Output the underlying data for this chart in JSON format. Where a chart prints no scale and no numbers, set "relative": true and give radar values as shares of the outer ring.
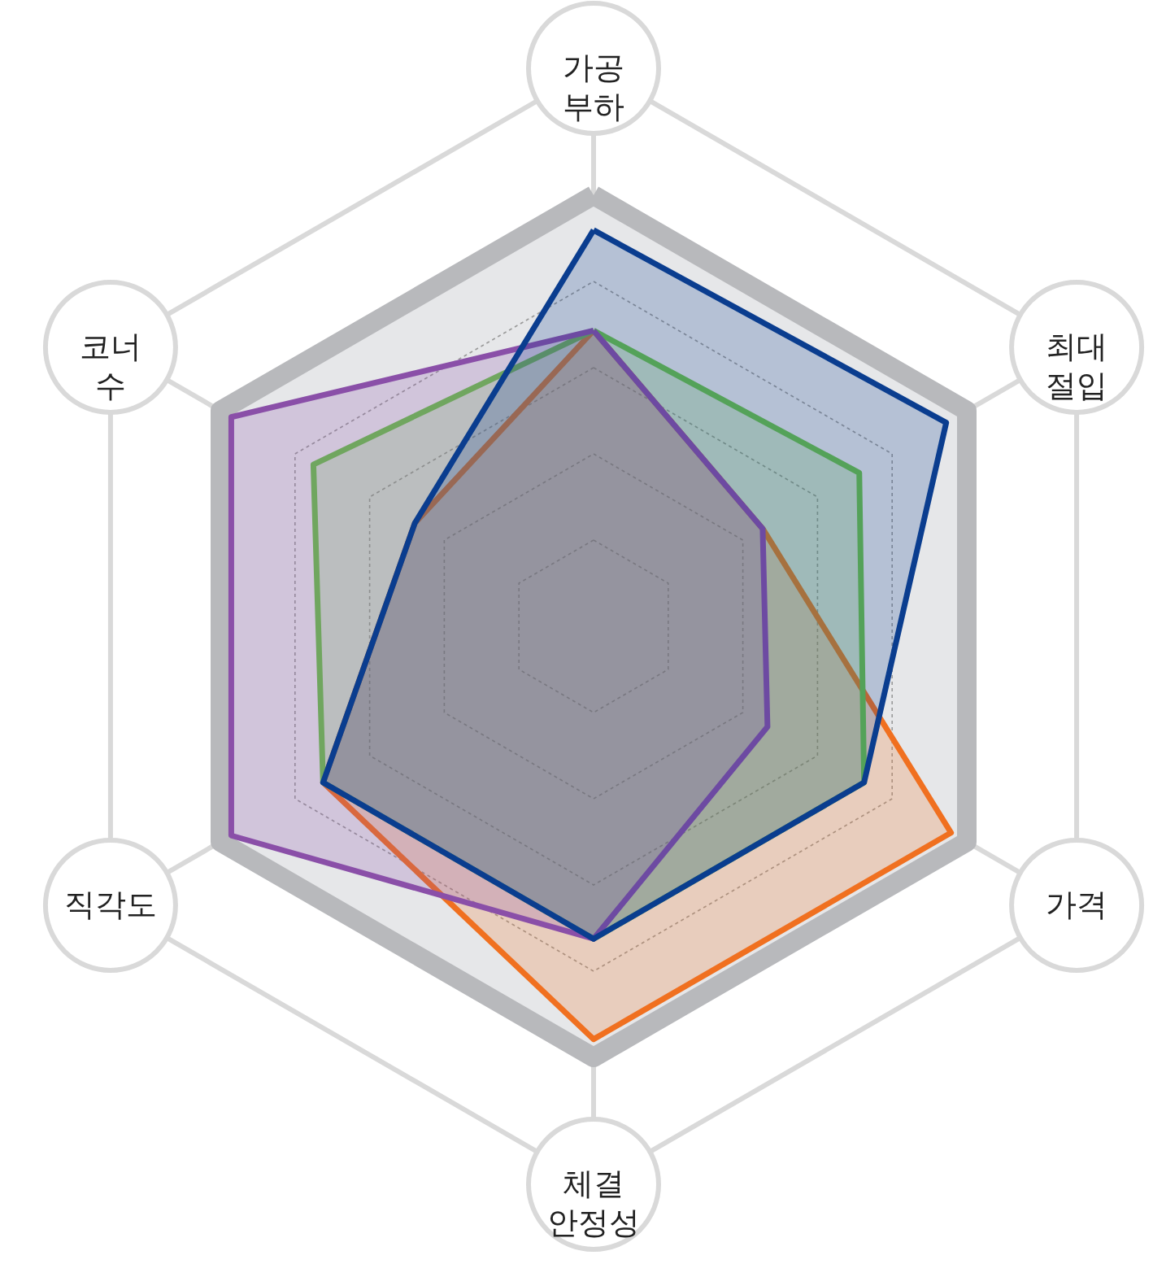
{
  "chart_data": {
    "type": "radar",
    "relative": true,
    "grid": true,
    "categories": [
      "가공 부하",
      "최대 절입",
      "가격",
      "체결 안정성",
      "직각도",
      "코너 수"
    ],
    "series": [
      {
        "color": "#f07020",
        "values": [
          0.53,
          0.35,
          0.74,
          0.74,
          0.56,
          0.37
        ]
      },
      {
        "color": "#6abf4b",
        "values": [
          0.53,
          0.55,
          0.56,
          0.56,
          0.56,
          0.58
        ]
      },
      {
        "color": "#8a4fa8",
        "values": [
          0.53,
          0.35,
          0.36,
          0.56,
          0.75,
          0.75
        ]
      },
      {
        "color": "#0a3d8f",
        "values": [
          0.71,
          0.73,
          0.56,
          0.56,
          0.56,
          0.37
        ]
      }
    ]
  }
}
